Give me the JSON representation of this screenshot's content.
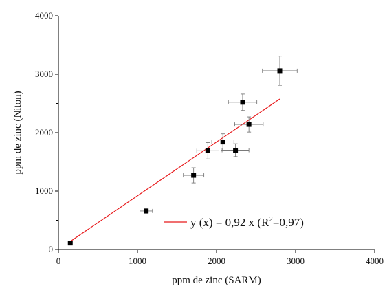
{
  "chart_data": {
    "type": "scatter",
    "xlabel": "ppm de zinc (SARM)",
    "ylabel": "ppm de zinc (Niton)",
    "xlim": [
      0,
      4000
    ],
    "ylim": [
      0,
      4000
    ],
    "x_ticks": [
      0,
      1000,
      2000,
      3000,
      4000
    ],
    "y_ticks": [
      0,
      1000,
      2000,
      3000,
      4000
    ],
    "grid": false,
    "points": [
      {
        "x": 150,
        "y": 110,
        "xerr": 0,
        "yerr": 0
      },
      {
        "x": 1110,
        "y": 660,
        "xerr": 80,
        "yerr": 50
      },
      {
        "x": 1710,
        "y": 1270,
        "xerr": 130,
        "yerr": 130
      },
      {
        "x": 1890,
        "y": 1690,
        "xerr": 140,
        "yerr": 140
      },
      {
        "x": 2080,
        "y": 1840,
        "xerr": 140,
        "yerr": 140
      },
      {
        "x": 2240,
        "y": 1700,
        "xerr": 170,
        "yerr": 110
      },
      {
        "x": 2330,
        "y": 2520,
        "xerr": 180,
        "yerr": 140
      },
      {
        "x": 2410,
        "y": 2140,
        "xerr": 180,
        "yerr": 130
      },
      {
        "x": 2800,
        "y": 3060,
        "xerr": 220,
        "yerr": 250
      }
    ],
    "fit_line": {
      "x_start": 150,
      "x_end": 2800,
      "slope": 0.92,
      "color": "#e8191b"
    },
    "legend": {
      "label_prefix": "y (x) = 0,92 x (R",
      "label_sup": "2",
      "label_suffix": "=0,97)",
      "placement": "lower-right"
    },
    "marker_color": "#000000",
    "errorbar_color": "#7a7a7a"
  }
}
